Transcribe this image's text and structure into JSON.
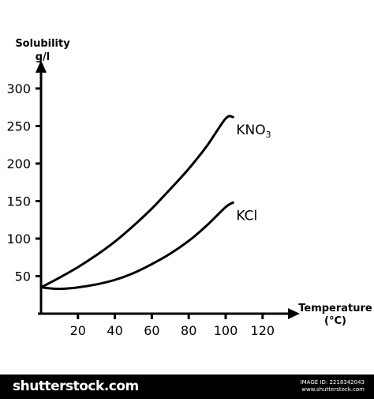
{
  "chart_data": {
    "type": "line",
    "ylabel": [
      "Solubility",
      "g/l"
    ],
    "xlabel": [
      "Temperature",
      "(°C)"
    ],
    "x_ticks": [
      20,
      40,
      60,
      80,
      100,
      120
    ],
    "y_ticks": [
      50,
      100,
      150,
      200,
      250,
      300
    ],
    "xlim": [
      0,
      135
    ],
    "ylim": [
      0,
      330
    ],
    "series": [
      {
        "name": "KNO3",
        "x": [
          0,
          10,
          20,
          30,
          40,
          50,
          60,
          70,
          80,
          90,
          100,
          104
        ],
        "y": [
          35,
          48,
          62,
          78,
          96,
          117,
          140,
          166,
          193,
          224,
          260,
          262
        ]
      },
      {
        "name": "KCl",
        "x": [
          0,
          10,
          20,
          30,
          40,
          50,
          60,
          70,
          80,
          90,
          100,
          104
        ],
        "y": [
          35,
          33,
          35,
          39,
          45,
          54,
          66,
          80,
          97,
          118,
          142,
          148
        ]
      }
    ],
    "colors": {
      "axis": "#000000",
      "line": "#000000"
    }
  },
  "footer": {
    "brand": "shutterstock",
    "brand_suffix": ".com",
    "image_id": "IMAGE ID: 2218342043",
    "site": "www.shutterstock.com"
  }
}
